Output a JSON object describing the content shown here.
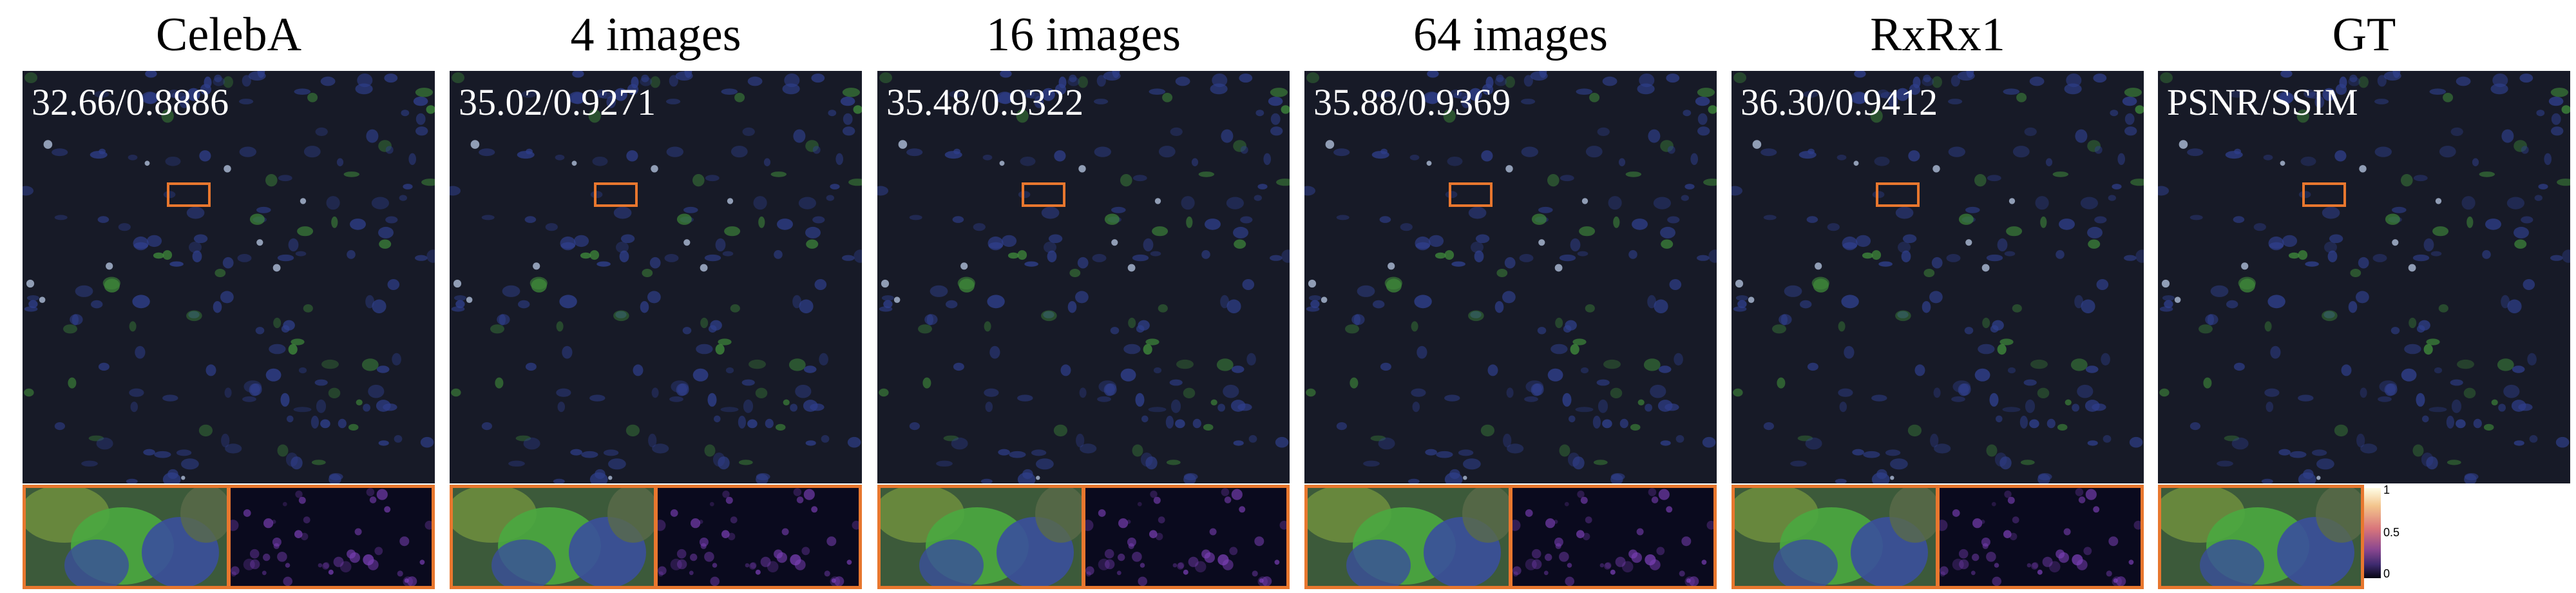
{
  "panels": [
    {
      "title": "CelebA",
      "metric": "32.66/0.8886"
    },
    {
      "title": "4 images",
      "metric": "35.02/0.9271"
    },
    {
      "title": "16 images",
      "metric": "35.48/0.9322"
    },
    {
      "title": "64 images",
      "metric": "35.88/0.9369"
    },
    {
      "title": "RxRx1",
      "metric": "36.30/0.9412"
    },
    {
      "title": "GT",
      "metric": "PSNR/SSIM"
    }
  ],
  "colorbar": {
    "max_label": "1",
    "mid_label": "0.5",
    "min_label": "0"
  },
  "colors": {
    "highlight": "#e8772e",
    "cell_blue": "#2f3f8c",
    "cell_green": "#3f8a3a",
    "background": "#171a27",
    "error_purple": "#7a3fb5"
  }
}
